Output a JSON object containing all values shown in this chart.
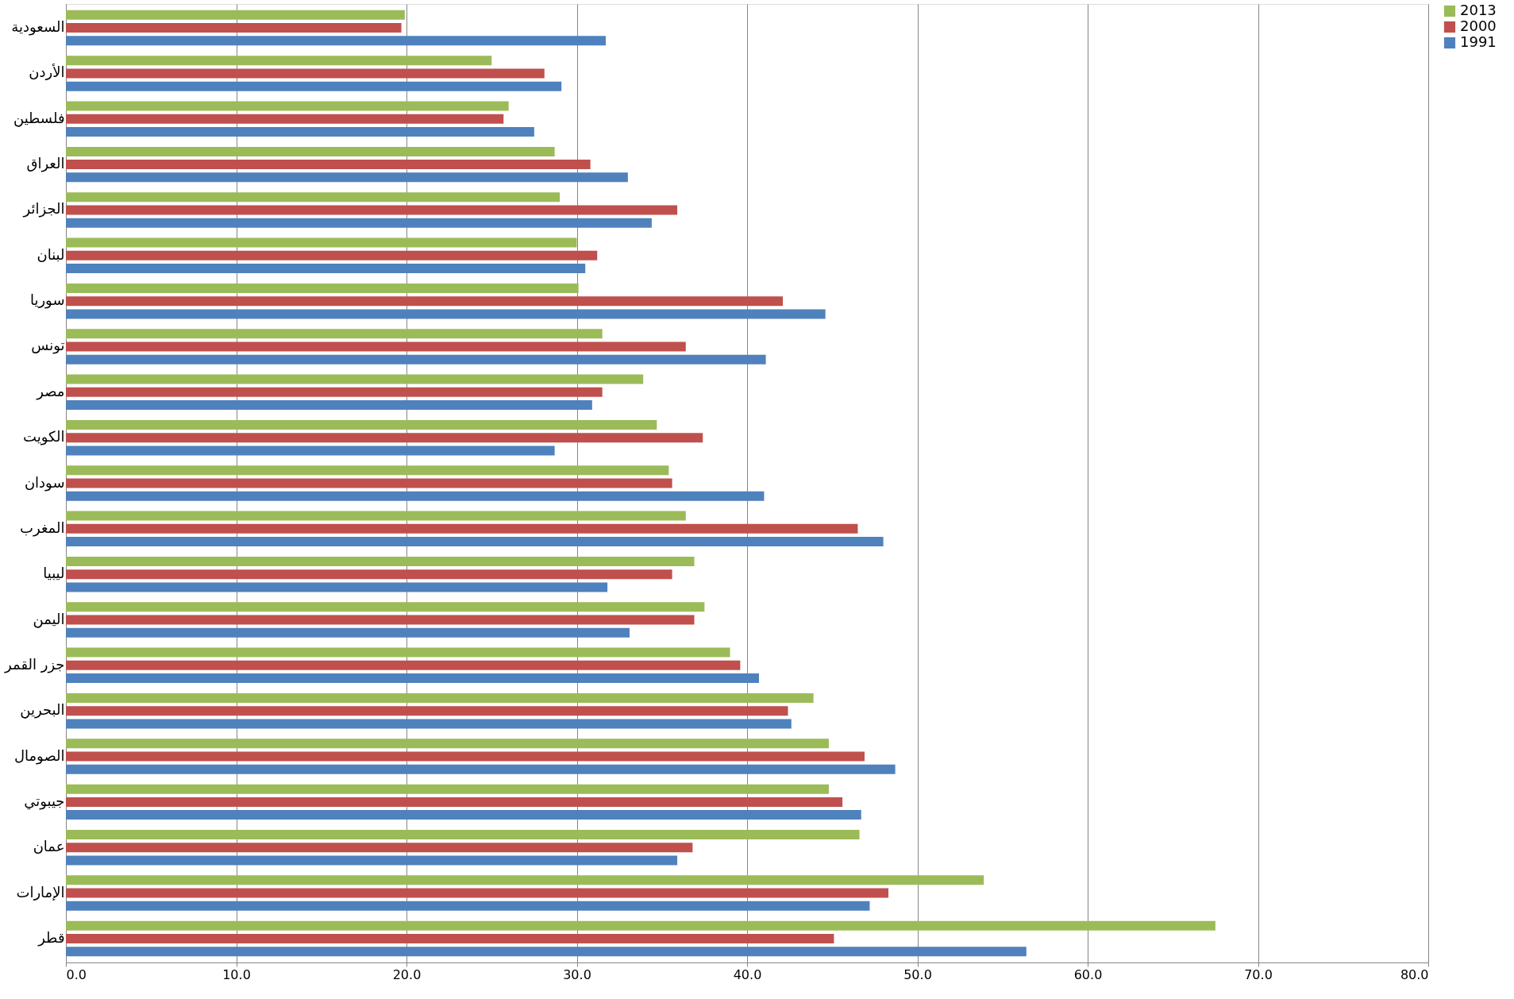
{
  "chart_data": {
    "type": "bar",
    "orientation": "horizontal",
    "categories": [
      "السعودية",
      "الأردن",
      "فلسطين",
      "العراق",
      "الجزائر",
      "لبنان",
      "سوريا",
      "تونس",
      "مصر",
      "الكويت",
      "سودان",
      "المغرب",
      "ليبيا",
      "اليمن",
      "جزر القمر",
      "البحرين",
      "الصومال",
      "جيبوتي",
      "عمان",
      "الإمارات",
      "قطر"
    ],
    "series": [
      {
        "name": "2013",
        "color": "#9bbb59",
        "values": [
          19.9,
          25.0,
          26.0,
          28.7,
          29.0,
          30.0,
          30.1,
          31.5,
          33.9,
          34.7,
          35.4,
          36.4,
          36.9,
          37.5,
          39.0,
          43.9,
          44.8,
          44.8,
          46.6,
          53.9,
          67.5
        ]
      },
      {
        "name": "2000",
        "color": "#c0504d",
        "values": [
          19.7,
          28.1,
          25.7,
          30.8,
          35.9,
          31.2,
          42.1,
          36.4,
          31.5,
          37.4,
          35.6,
          46.5,
          35.6,
          36.9,
          39.6,
          42.4,
          46.9,
          45.6,
          36.8,
          48.3,
          45.1
        ]
      },
      {
        "name": "1991",
        "color": "#4f81bd",
        "values": [
          31.7,
          29.1,
          27.5,
          33.0,
          34.4,
          30.5,
          44.6,
          41.1,
          30.9,
          28.7,
          41.0,
          48.0,
          31.8,
          33.1,
          40.7,
          42.6,
          48.7,
          46.7,
          35.9,
          47.2,
          56.4
        ]
      }
    ],
    "xlim": [
      0,
      80
    ],
    "xticks": [
      {
        "value": 0,
        "label": "0.0"
      },
      {
        "value": 10,
        "label": "10.0"
      },
      {
        "value": 20,
        "label": "20.0"
      },
      {
        "value": 30,
        "label": "30.0"
      },
      {
        "value": 40,
        "label": "40.0"
      },
      {
        "value": 50,
        "label": "50.0"
      },
      {
        "value": 60,
        "label": "60.0"
      },
      {
        "value": 70,
        "label": "70.0"
      },
      {
        "value": 80,
        "label": "80.0"
      }
    ],
    "grid": "x",
    "legend": "right"
  }
}
